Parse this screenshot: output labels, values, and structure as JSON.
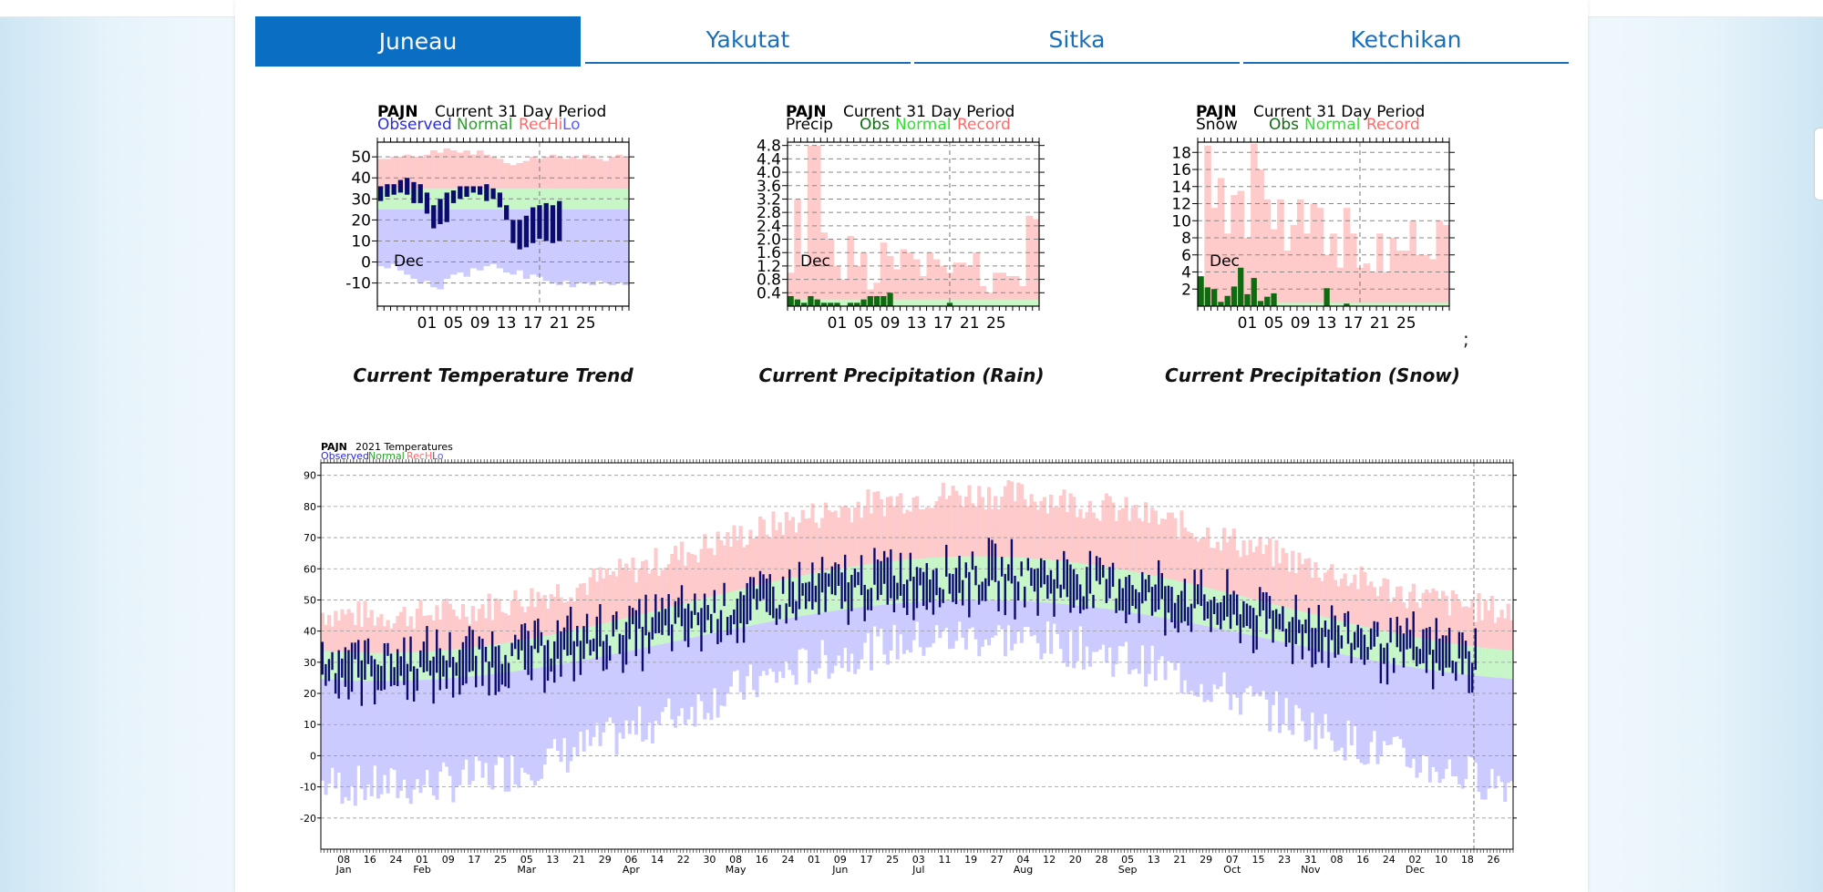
{
  "tabs": [
    {
      "label": "Juneau",
      "active": true
    },
    {
      "label": "Yakutat",
      "active": false
    },
    {
      "label": "Sitka",
      "active": false
    },
    {
      "label": "Ketchikan",
      "active": false
    }
  ],
  "colors": {
    "accent": "#0a6fc2",
    "tab_text": "#1a6fb8",
    "observed": "#0b0b6e",
    "observed_label": "#2a2ad8",
    "normal": "#c7f7c7",
    "normal_label": "#2ca02c",
    "record": "#ffcaca",
    "record_low": "#cccbff",
    "record_label": "#ff6b6b",
    "precip_obs": "#0f6b0f"
  },
  "captions": {
    "temp": "Current Temperature Trend",
    "rain": "Current Precipitation (Rain)",
    "snow": "Current Precipitation (Snow)",
    "extra": ";"
  },
  "chart_data": [
    {
      "type": "bar",
      "station": "PAJN",
      "title": "Current 31 Day Period",
      "legend": [
        {
          "label": "Observed",
          "color": "#2a2ad8"
        },
        {
          "label": "Normal",
          "color": "#2ca02c"
        },
        {
          "label": "RecHi",
          "color": "#ff6b6b"
        },
        {
          "label": "Lo",
          "color": "#5c5cff"
        }
      ],
      "x_ticks": [
        "01",
        "05",
        "09",
        "13",
        "17",
        "21",
        "25"
      ],
      "x_month": "Dec",
      "yticks": [
        50,
        40,
        30,
        20,
        10,
        0,
        -10
      ],
      "ylim": [
        -21,
        57
      ],
      "days": 38,
      "today_index": 24,
      "normal_high": 35,
      "normal_low": 25,
      "record_high": [
        49,
        49,
        50,
        50,
        51,
        50,
        50,
        51,
        53,
        52,
        54,
        53,
        52,
        53,
        51,
        53,
        51,
        50,
        49,
        47,
        46,
        47,
        48,
        50,
        49,
        50,
        51,
        50,
        49,
        50,
        49,
        51,
        50,
        49,
        48,
        50,
        51,
        50
      ],
      "record_low": [
        -2,
        -3,
        -1,
        -4,
        -6,
        -8,
        -10,
        -9,
        -12,
        -13,
        -8,
        -6,
        -5,
        -7,
        -3,
        -4,
        -2,
        -1,
        -3,
        -5,
        -6,
        -4,
        -8,
        -6,
        -7,
        -9,
        -10,
        -11,
        -9,
        -12,
        -10,
        -10,
        -11,
        -9,
        -10,
        -11,
        -10,
        -11
      ],
      "observed_high": [
        36,
        37,
        37,
        39,
        40,
        38,
        37,
        33,
        27,
        30,
        33,
        34,
        36,
        36,
        36,
        36,
        37,
        35,
        33,
        27,
        20,
        20,
        22,
        26,
        27,
        28,
        27,
        29,
        null,
        null,
        null,
        null,
        null,
        null,
        null,
        null,
        null,
        null
      ],
      "observed_low": [
        29,
        31,
        32,
        33,
        32,
        28,
        28,
        23,
        16,
        18,
        19,
        28,
        30,
        31,
        33,
        32,
        29,
        30,
        26,
        20,
        9,
        6,
        7,
        9,
        11,
        10,
        9,
        10,
        null,
        null,
        null,
        null,
        null,
        null,
        null,
        null,
        null,
        null
      ]
    },
    {
      "type": "bar",
      "station": "PAJN",
      "title": "Current 31 Day Period",
      "subtitle": "Precip",
      "legend": [
        {
          "label": "Obs",
          "color": "#0f6b0f"
        },
        {
          "label": "Normal",
          "color": "#32e032"
        },
        {
          "label": "Record",
          "color": "#ff6b6b"
        }
      ],
      "x_ticks": [
        "01",
        "05",
        "09",
        "13",
        "17",
        "21",
        "25"
      ],
      "x_month": "Dec",
      "yticks": [
        4.8,
        4.4,
        4.0,
        3.6,
        3.2,
        2.8,
        2.4,
        2.0,
        1.6,
        1.2,
        0.8,
        0.4
      ],
      "ylim": [
        0,
        4.9
      ],
      "days": 38,
      "today_index": 24,
      "normal": 0.2,
      "record": [
        1.0,
        3.2,
        1.2,
        4.8,
        4.8,
        2.2,
        2.0,
        1.2,
        0.8,
        2.1,
        1.2,
        1.6,
        0.5,
        0.7,
        1.9,
        1.5,
        1.1,
        1.7,
        1.6,
        1.4,
        0.9,
        1.6,
        1.4,
        1.2,
        1.0,
        1.3,
        1.3,
        1.2,
        1.6,
        0.6,
        0.4,
        1.0,
        1.0,
        0.9,
        0.9,
        0.6,
        2.7,
        2.6
      ],
      "observed": [
        0.3,
        0.2,
        0.1,
        0.3,
        0.2,
        0.1,
        0.1,
        0.1,
        0.0,
        0.1,
        0.1,
        0.2,
        0.3,
        0.3,
        0.3,
        0.4,
        0.0,
        0.0,
        0.0,
        0.0,
        0.0,
        0.0,
        0.0,
        0.0,
        0.1,
        0.0,
        0.0,
        0.0,
        0.0,
        0.0,
        0.0,
        0.0,
        0.0,
        0.0,
        0.0,
        0.0,
        0.0,
        0.0
      ]
    },
    {
      "type": "bar",
      "station": "PAJN",
      "title": "Current 31 Day Period",
      "subtitle": "Snow",
      "legend": [
        {
          "label": "Obs",
          "color": "#0f6b0f"
        },
        {
          "label": "Normal",
          "color": "#32e032"
        },
        {
          "label": "Record",
          "color": "#ff6b6b"
        }
      ],
      "x_ticks": [
        "01",
        "05",
        "09",
        "13",
        "17",
        "21",
        "25"
      ],
      "x_month": "Dec",
      "yticks": [
        18,
        16,
        14,
        12,
        10,
        8,
        6,
        4,
        2
      ],
      "ylim": [
        0,
        19.2
      ],
      "days": 38,
      "today_index": 24,
      "normal": 0.4,
      "record": [
        2.0,
        18.8,
        11.5,
        15.0,
        8.5,
        13.0,
        13.5,
        8.0,
        19.0,
        16.0,
        12.5,
        9.0,
        12.5,
        6.5,
        9.5,
        12.5,
        8.5,
        12.0,
        11.5,
        6.0,
        8.5,
        4.5,
        11.5,
        8.5,
        4.5,
        5.0,
        4.0,
        8.5,
        4.0,
        8.0,
        6.5,
        6.5,
        10.0,
        6.0,
        6.0,
        5.5,
        10.0,
        9.5
      ],
      "observed": [
        3.5,
        2.2,
        2.0,
        0.5,
        1.2,
        2.3,
        4.5,
        1.4,
        3.3,
        0.6,
        1.1,
        1.5,
        0.0,
        0.0,
        0.0,
        0.0,
        0.0,
        0.0,
        0.0,
        2.1,
        0.0,
        0.0,
        0.3,
        0.0,
        0.0,
        0.0,
        0.0,
        0.0,
        0.0,
        0.0,
        0.0,
        0.0,
        0.0,
        0.0,
        0.0,
        0.0,
        0.0,
        0.0
      ]
    },
    {
      "type": "bar",
      "station": "PAJN",
      "title": "2021 Temperatures",
      "legend": [
        {
          "label": "Observed",
          "color": "#2a2ad8"
        },
        {
          "label": "Normal",
          "color": "#2ca02c"
        },
        {
          "label": "RecHi",
          "color": "#ff6b6b"
        },
        {
          "label": "Lo",
          "color": "#5c5cff"
        }
      ],
      "yticks": [
        90,
        80,
        70,
        60,
        50,
        40,
        30,
        20,
        10,
        0,
        -10,
        -20
      ],
      "ylim": [
        -30,
        94
      ],
      "day_ticks": [
        "08",
        "16",
        "24",
        "01",
        "09",
        "17",
        "25",
        "05",
        "13",
        "21",
        "29",
        "06",
        "14",
        "22",
        "30",
        "08",
        "16",
        "24",
        "01",
        "09",
        "17",
        "25",
        "03",
        "11",
        "19",
        "27",
        "04",
        "12",
        "20",
        "28",
        "05",
        "13",
        "21",
        "29",
        "07",
        "15",
        "23",
        "31",
        "08",
        "16",
        "24",
        "02",
        "10",
        "18",
        "26"
      ],
      "months": [
        "Jan",
        "Feb",
        "Mar",
        "Apr",
        "May",
        "Jun",
        "Jul",
        "Aug",
        "Sep",
        "Oct",
        "Nov",
        "Dec"
      ],
      "year_days": 365,
      "today_day": 353,
      "observed_through_day": 354,
      "normal_high": {
        "winter": 33,
        "summer": 64
      },
      "normal_low": {
        "winter": 24,
        "summer": 50
      },
      "record_high": {
        "winter": 45,
        "summer": 84
      },
      "record_low": {
        "winter": -10,
        "summer": 38
      }
    }
  ]
}
